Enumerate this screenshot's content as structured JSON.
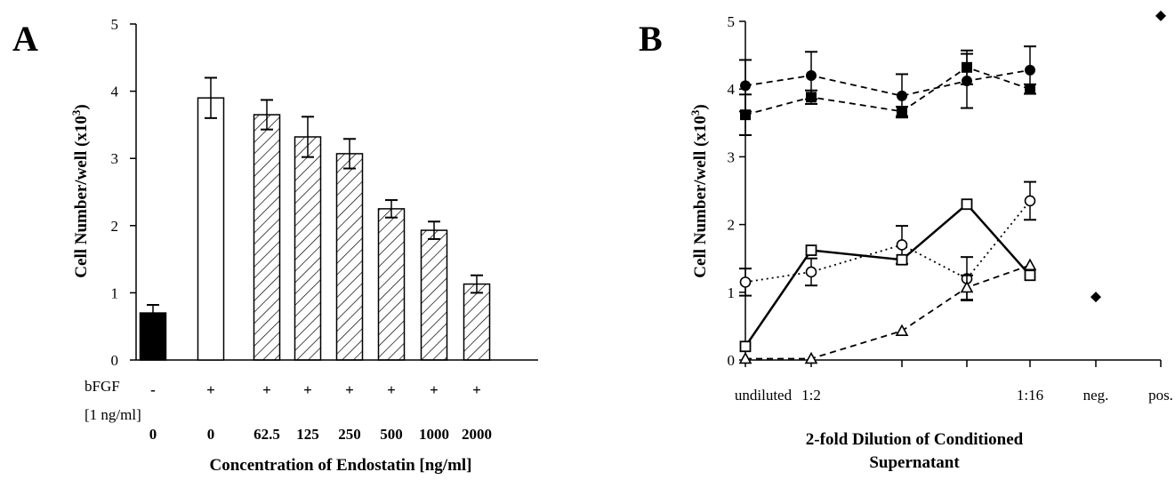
{
  "chart_data": [
    {
      "type": "bar",
      "panel_label": "A",
      "ylabel": "Cell Number/well (x10",
      "ylabel_sup": "3",
      "ylabel_end": ")",
      "xlabel": "Concentration of Endostatin [ng/ml]",
      "ylim": [
        0,
        5
      ],
      "yticks": [
        "0",
        "1",
        "2",
        "3",
        "4",
        "5"
      ],
      "row1_label": "bFGF",
      "row2_label": "[1 ng/ml]",
      "categories": [
        "0",
        "0",
        "62.5",
        "125",
        "250",
        "500",
        "1000",
        "2000"
      ],
      "bfgf_signs": [
        "-",
        "+",
        "+",
        "+",
        "+",
        "+",
        "+",
        "+"
      ],
      "values": [
        0.7,
        3.9,
        3.65,
        3.32,
        3.07,
        2.25,
        1.93,
        1.13
      ],
      "errors": [
        0.12,
        0.3,
        0.22,
        0.3,
        0.22,
        0.13,
        0.13,
        0.13
      ],
      "fills": [
        "solid",
        "open",
        "hatched",
        "hatched",
        "hatched",
        "hatched",
        "hatched",
        "hatched"
      ],
      "grid": false
    },
    {
      "type": "line",
      "panel_label": "B",
      "ylabel": "Cell Number/well (x10",
      "ylabel_sup": "3",
      "ylabel_end": ")",
      "xlabel_line1": "2-fold Dilution of Conditioned",
      "xlabel_line2": "Supernatant",
      "ylim": [
        0,
        5
      ],
      "yticks": [
        "0",
        "1",
        "2",
        "3",
        "4",
        "5"
      ],
      "x_tick_labels": [
        "undiluted",
        "1:2",
        "",
        "",
        "1:16",
        "neg.",
        "pos."
      ],
      "series": [
        {
          "marker": "filled-circle",
          "line": "dashed",
          "values": [
            4.05,
            4.2,
            3.9,
            4.12,
            4.28
          ],
          "errors": [
            0.38,
            0.35,
            0.32,
            0.4,
            0.35
          ]
        },
        {
          "marker": "filled-square",
          "line": "dashed",
          "values": [
            3.62,
            3.88,
            3.67,
            4.32,
            4.0
          ],
          "errors": [
            0.3,
            0.1,
            0.07,
            0.25,
            0.07
          ]
        },
        {
          "marker": "open-circle",
          "line": "dotted",
          "values": [
            1.15,
            1.3,
            1.7,
            1.2,
            2.35
          ],
          "errors": [
            0.2,
            0.2,
            0.28,
            0.32,
            0.28
          ]
        },
        {
          "marker": "open-square",
          "line": "solid",
          "values": [
            0.2,
            1.62,
            1.48,
            2.3,
            1.25
          ],
          "errors": [
            0.05,
            0.05,
            0.05,
            0.05,
            0.05
          ]
        },
        {
          "marker": "open-triangle",
          "line": "dashed",
          "values": [
            0.02,
            0.02,
            0.43,
            1.07,
            1.4
          ],
          "errors": [
            0.0,
            0.0,
            0.0,
            0.18,
            0.0
          ]
        }
      ],
      "controls": [
        {
          "label": "neg.",
          "value": 0.93
        },
        {
          "label": "pos.",
          "value": 5.08
        }
      ],
      "grid": false
    }
  ]
}
